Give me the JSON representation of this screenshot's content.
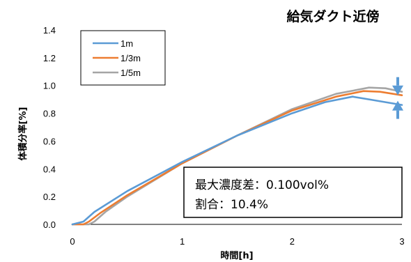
{
  "chart_data": {
    "type": "line",
    "title": "給気ダクト近傍",
    "xlabel": "時間[h]",
    "ylabel": "体積分率[%]",
    "xlim": [
      0,
      3
    ],
    "ylim": [
      0,
      1.4
    ],
    "xticks": [
      "0",
      "1",
      "2",
      "3"
    ],
    "yticks": [
      "0.0",
      "0.2",
      "0.4",
      "0.6",
      "0.8",
      "1.0",
      "1.2",
      "1.4"
    ],
    "grid": false,
    "legend_position": "top-left",
    "series": [
      {
        "name": "1m",
        "color": "#5B9BD5",
        "x": [
          0,
          0.1,
          0.2,
          0.5,
          1.0,
          1.5,
          2.0,
          2.3,
          2.55,
          2.7,
          3.0
        ],
        "y": [
          0,
          0.02,
          0.09,
          0.24,
          0.45,
          0.64,
          0.8,
          0.88,
          0.92,
          0.9,
          0.86
        ]
      },
      {
        "name": "1/3m",
        "color": "#ED7D31",
        "x": [
          0,
          0.1,
          0.15,
          0.25,
          0.5,
          1.0,
          1.5,
          2.0,
          2.4,
          2.65,
          2.8,
          3.0
        ],
        "y": [
          0,
          0.0,
          0.02,
          0.08,
          0.21,
          0.44,
          0.64,
          0.82,
          0.92,
          0.96,
          0.955,
          0.93
        ]
      },
      {
        "name": "1/5m",
        "color": "#A5A5A5",
        "x": [
          0,
          0.15,
          0.2,
          0.3,
          0.5,
          1.0,
          1.5,
          2.0,
          2.4,
          2.7,
          2.85,
          3.0
        ],
        "y": [
          0,
          0.0,
          0.02,
          0.09,
          0.2,
          0.44,
          0.64,
          0.83,
          0.94,
          0.985,
          0.98,
          0.955
        ]
      }
    ],
    "annotation": {
      "line1": "最大濃度差：0.100vol%",
      "line2": "割合：10.4%"
    },
    "markers": [
      {
        "type": "arrow-down",
        "x": 3.0,
        "y": 0.97,
        "color": "#5B9BD5"
      },
      {
        "type": "arrow-up",
        "x": 3.0,
        "y": 0.85,
        "color": "#5B9BD5"
      }
    ]
  }
}
